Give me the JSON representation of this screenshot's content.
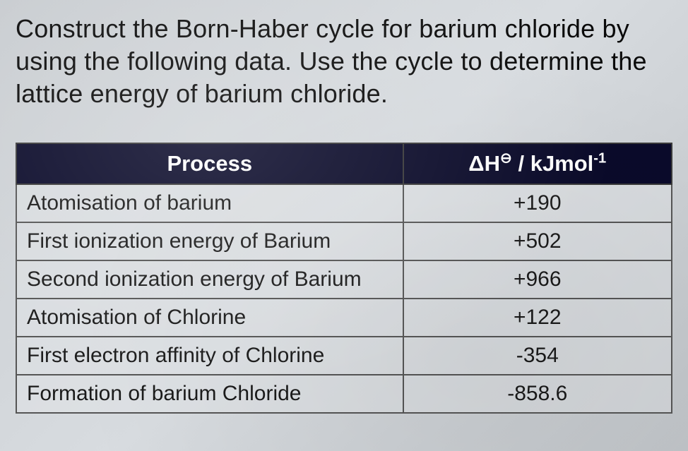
{
  "question": "Construct the Born-Haber cycle for barium chloride by using the following data. Use the cycle to determine the lattice energy of barium chloride.",
  "table": {
    "type": "table",
    "background_color": "#d0d4d8",
    "header_bg": "#0a0a2a",
    "header_text_color": "#ffffff",
    "border_color": "#555555",
    "font_size_header": 31,
    "font_size_cell": 30,
    "columns": [
      {
        "label": "Process",
        "align": "left",
        "width_pct": 59
      },
      {
        "label_html": "ΔH<sup>⦵</sup> / kJmol<sup>-1</sup>",
        "align": "center",
        "width_pct": 41
      }
    ],
    "rows": [
      {
        "process": "Atomisation of barium",
        "value": "+190"
      },
      {
        "process": "First ionization energy of Barium",
        "value": "+502"
      },
      {
        "process": "Second ionization energy of Barium",
        "value": "+966"
      },
      {
        "process": "Atomisation of Chlorine",
        "value": "+122"
      },
      {
        "process": "First electron affinity of Chlorine",
        "value": "-354"
      },
      {
        "process": "Formation of barium Chloride",
        "value": "-858.6"
      }
    ]
  }
}
